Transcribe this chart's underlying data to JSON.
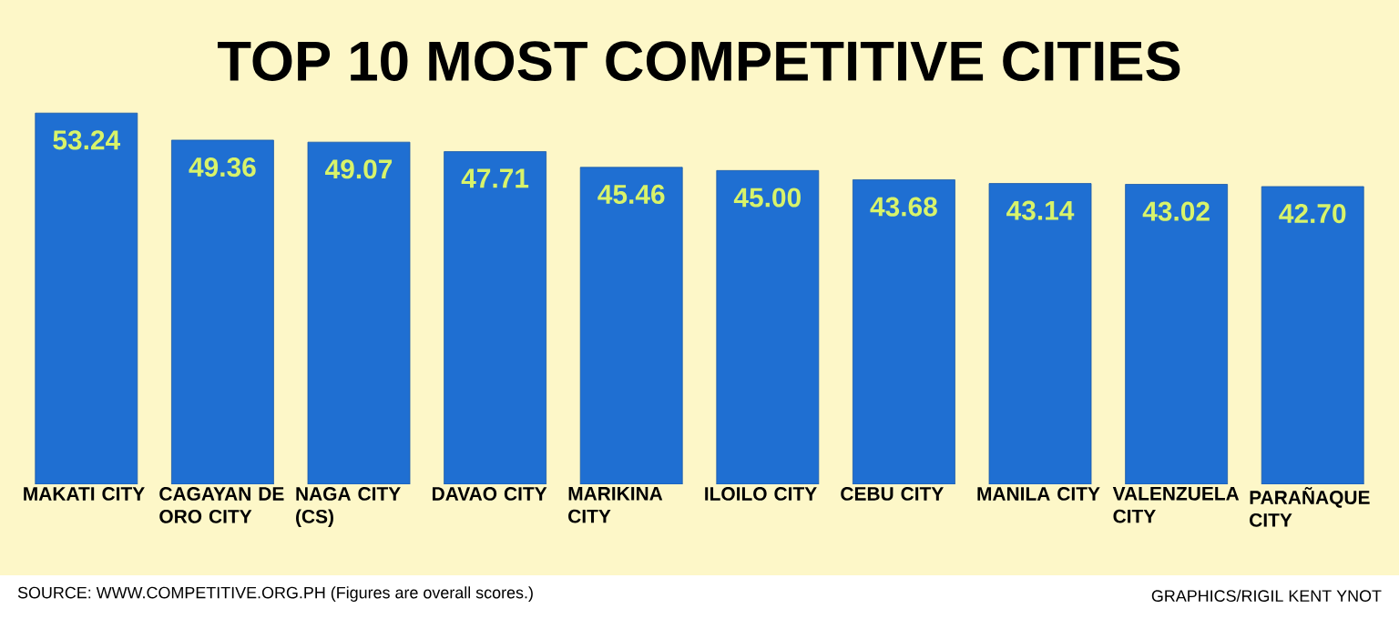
{
  "chart_data": {
    "type": "bar",
    "title": "TOP 10 MOST COMPETITIVE CITIES",
    "categories": [
      "MAKATI CITY",
      "CAGAYAN DE ORO CITY",
      "NAGA CITY (CS)",
      "DAVAO CITY",
      "MARIKINA CITY",
      "ILOILO CITY",
      "CEBU CITY",
      "MANILA CITY",
      "VALENZUELA CITY",
      "PARAÑAQUE CITY"
    ],
    "values": [
      53.24,
      49.36,
      49.07,
      47.71,
      45.46,
      45.0,
      43.68,
      43.14,
      43.02,
      42.7
    ],
    "value_labels": [
      "53.24",
      "49.36",
      "49.07",
      "47.71",
      "45.46",
      "45.00",
      "43.68",
      "43.14",
      "43.02",
      "42.70"
    ],
    "color": "#1f6fd2",
    "data_labels": true,
    "annotations": [
      "SOURCE: WWW.COMPETITIVE.ORG.PH (Figures are overall scores.)",
      "GRAPHICS/RIGIL KENT YNOT"
    ]
  }
}
